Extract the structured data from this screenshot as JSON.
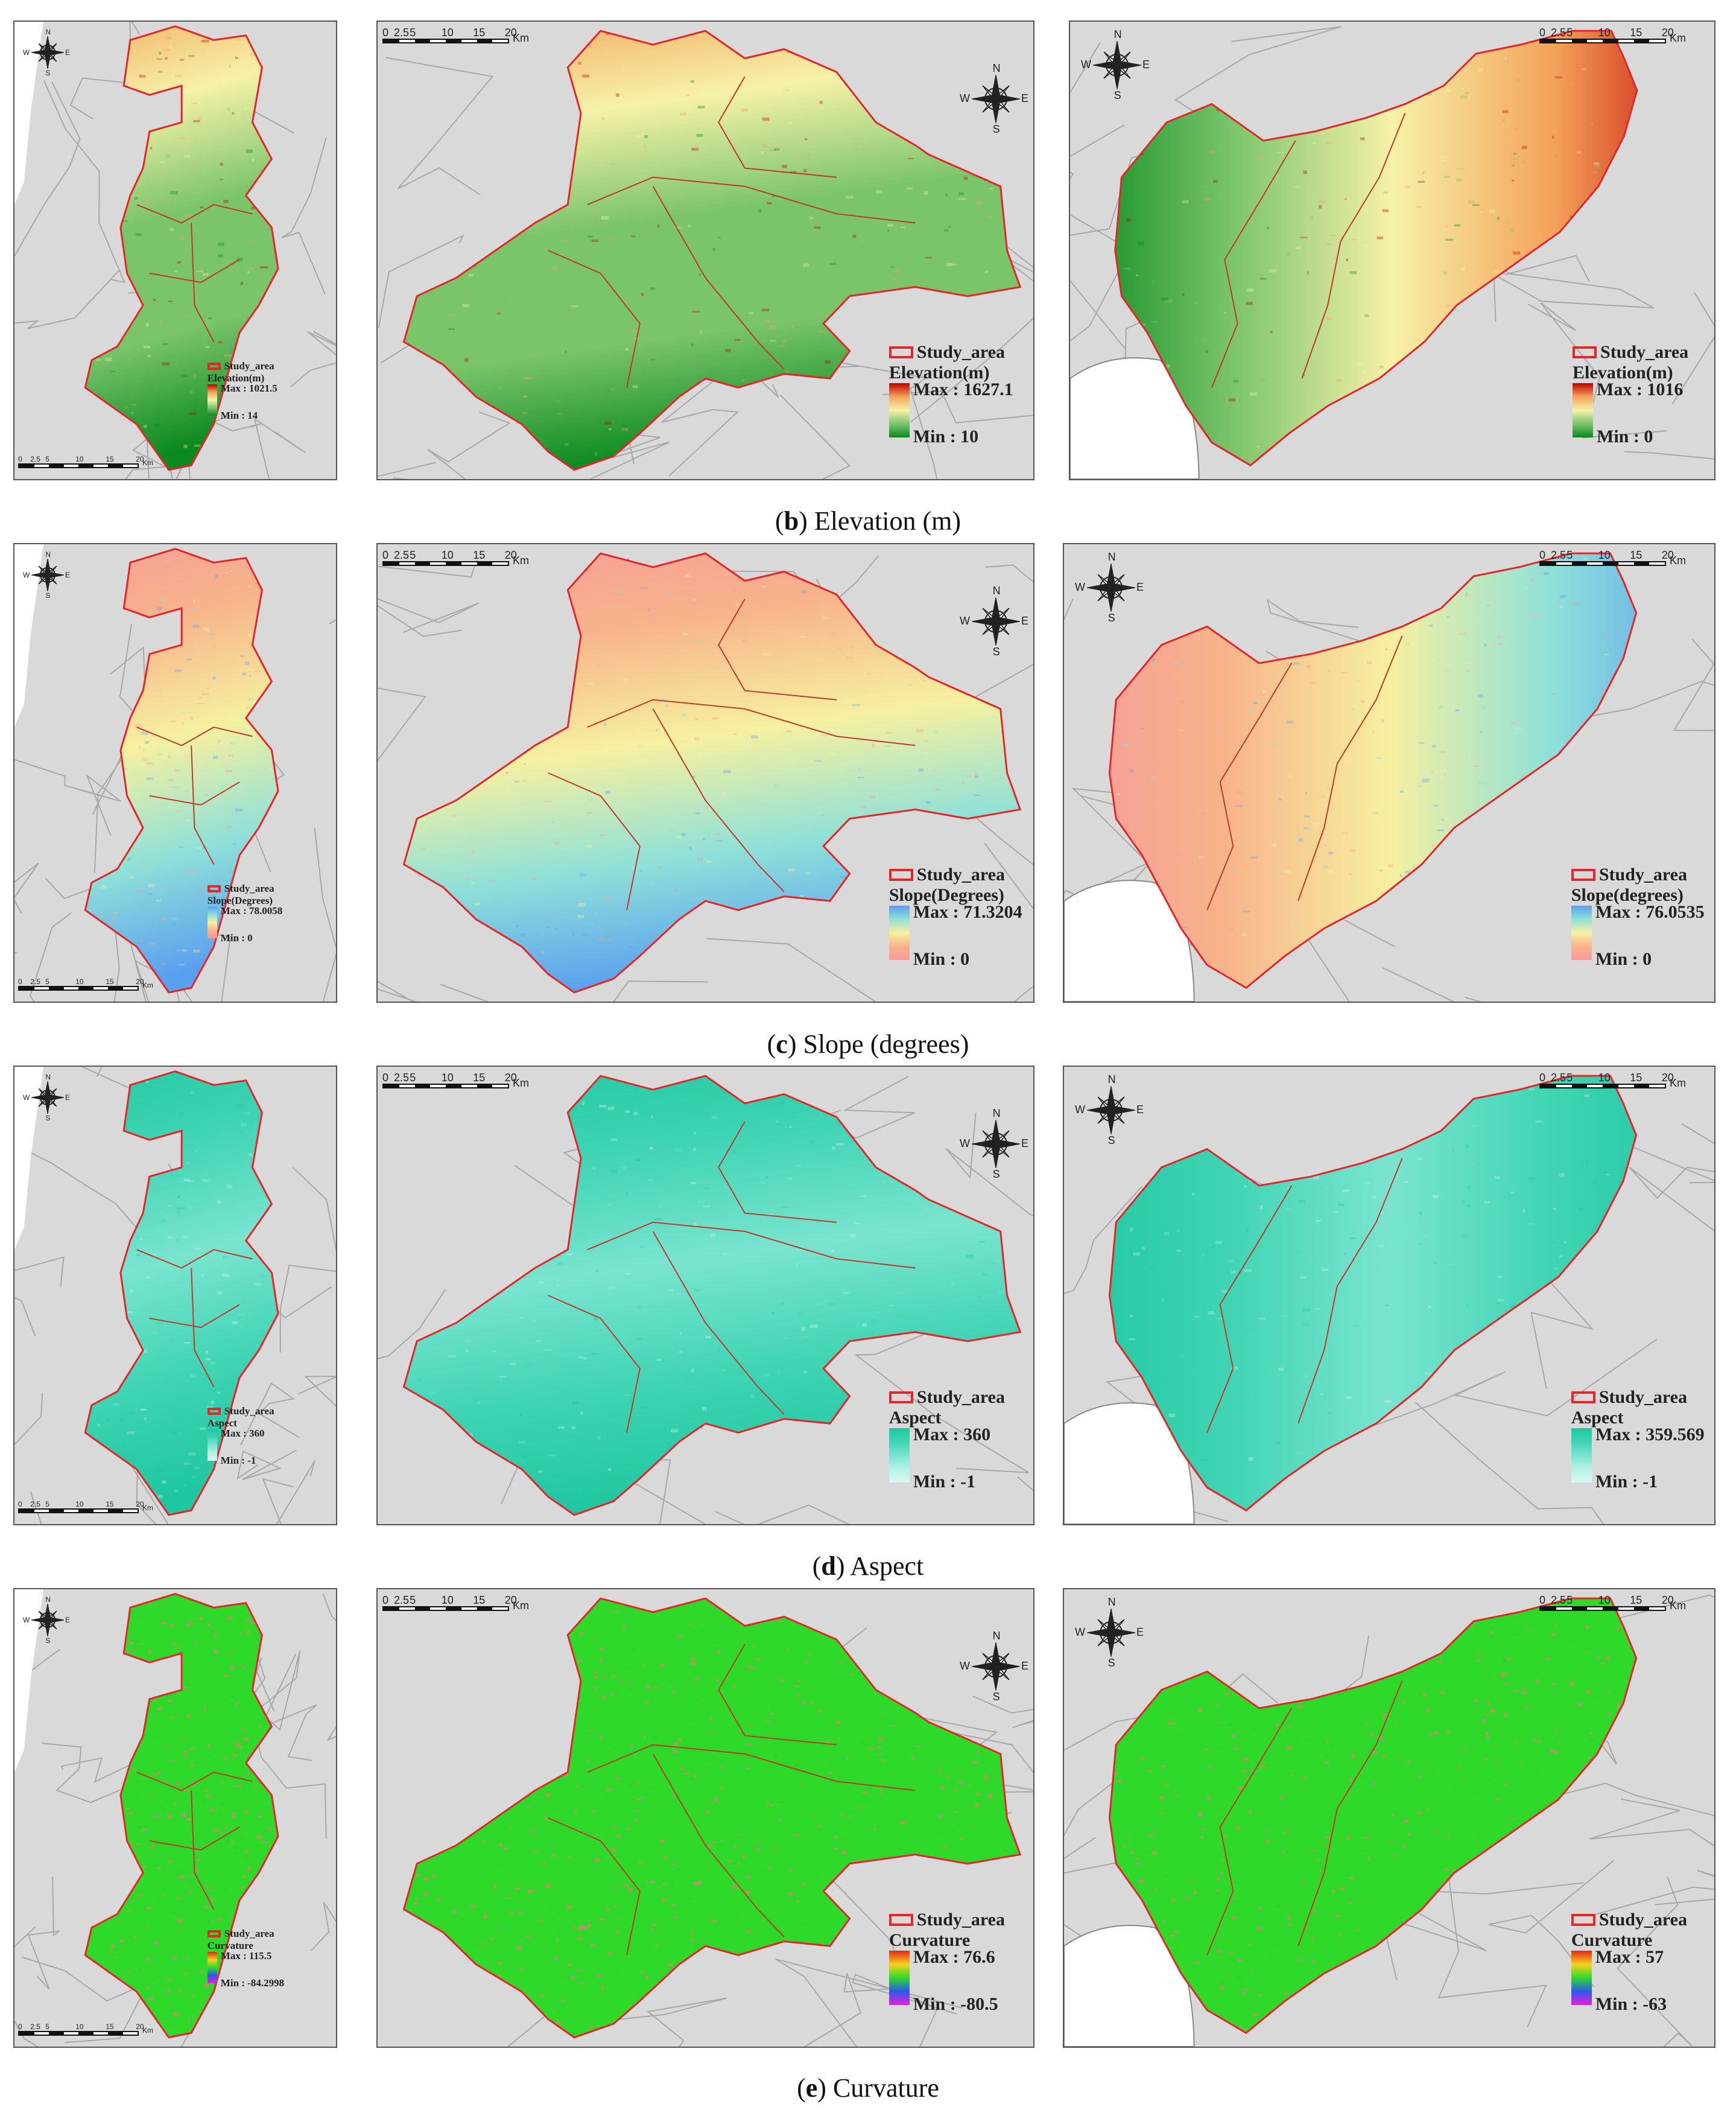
{
  "captions": [
    {
      "letter": "b",
      "text": " Elevation (m)",
      "open": "(",
      "close": ")"
    },
    {
      "letter": "c",
      "text": " Slope (degrees)",
      "open": "(",
      "close": ")"
    },
    {
      "letter": "d",
      "text": " Aspect",
      "open": "(",
      "close": ")"
    },
    {
      "letter": "e",
      "text": " Curvature",
      "open": "(",
      "close": ")"
    }
  ],
  "scale": {
    "ticks": [
      "0",
      "2.5",
      "5",
      "10",
      "15",
      "20"
    ],
    "unit": "Km"
  },
  "compass": {
    "n": "N",
    "s": "S",
    "e": "E",
    "w": "W"
  },
  "study_area_label": "Study_area",
  "rows": [
    {
      "name": "elevation",
      "colors": [
        "#c00000",
        "#f4a35a",
        "#f6f1a8",
        "#7ac46a",
        "#0a8a1e"
      ],
      "legends": [
        {
          "title": "Elevation(m)",
          "max": "Max : 1021.5",
          "min": "Min : 14"
        },
        {
          "title": "Elevation(m)",
          "max": "Max : 1627.1",
          "min": "Min : 10"
        },
        {
          "title": "Elevation(m)",
          "max": "Max : 1016",
          "min": "Min : 0"
        }
      ]
    },
    {
      "name": "slope",
      "colors": [
        "#5aa0f0",
        "#8fe0d8",
        "#f6f0a0",
        "#f7b48a",
        "#f79a9a"
      ],
      "legends": [
        {
          "title": "Slope(Degrees)",
          "max": "Max : 78.0058",
          "min": "Min : 0"
        },
        {
          "title": "Slope(Degrees)",
          "max": "Max : 71.3204",
          "min": "Min : 0"
        },
        {
          "title": "Slope(degrees)",
          "max": "Max : 76.0535",
          "min": "Min : 0"
        }
      ]
    },
    {
      "name": "aspect",
      "colors": [
        "#1fc7a0",
        "#3fd4b4",
        "#7ae4cf",
        "#b5f0e4",
        "#d8f8f2"
      ],
      "legends": [
        {
          "title": "Aspect",
          "max": "Max : 360",
          "min": "Min : -1"
        },
        {
          "title": "Aspect",
          "max": "Max : 360",
          "min": "Min : -1"
        },
        {
          "title": "Aspect",
          "max": "Max : 359.569",
          "min": "Min : -1"
        }
      ]
    },
    {
      "name": "curvature",
      "colors": [
        "#e8231c",
        "#f7d21a",
        "#2fd92a",
        "#2a5ae8",
        "#e81ee0"
      ],
      "legends": [
        {
          "title": "Curvature",
          "max": "Max : 115.5",
          "min": "Min : -84.2998"
        },
        {
          "title": "Curvature",
          "max": "Max : 76.6",
          "min": "Min : -80.5"
        },
        {
          "title": "Curvature",
          "max": "Max : 57",
          "min": "Min : -63"
        }
      ]
    }
  ]
}
